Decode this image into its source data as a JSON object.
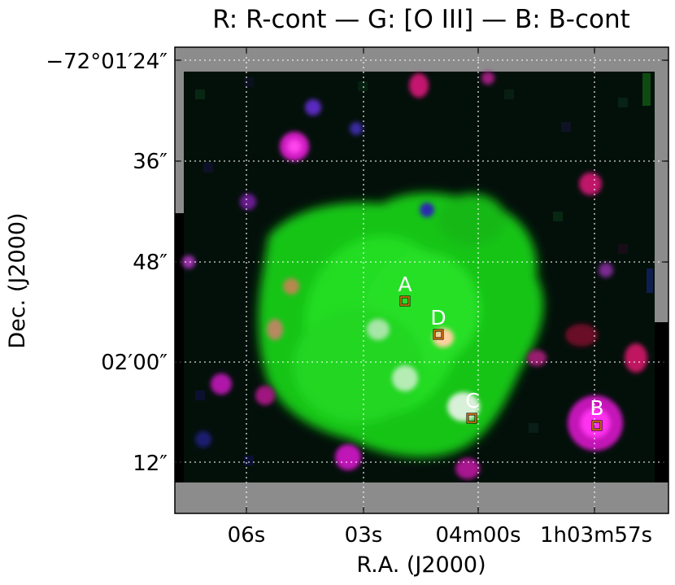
{
  "title": "R: R-cont — G: [O III] — B: B-cont",
  "xlabel": "R.A. (J2000)",
  "ylabel": "Dec. (J2000)",
  "yticks": [
    "−72°01′24″",
    "36″",
    "48″",
    "02′00″",
    "12″"
  ],
  "xticks": [
    "06s",
    "03s",
    "04m00s",
    "1h03m57s"
  ],
  "markers": [
    "A",
    "D",
    "C",
    "B"
  ],
  "channels": {
    "red": "R-cont",
    "green": "[O III]",
    "blue": "B-cont"
  },
  "colors": {
    "marker_box": "#e07a10",
    "grid": "#ffffff",
    "nodata": "#8c8c8c",
    "background": "#000000"
  }
}
